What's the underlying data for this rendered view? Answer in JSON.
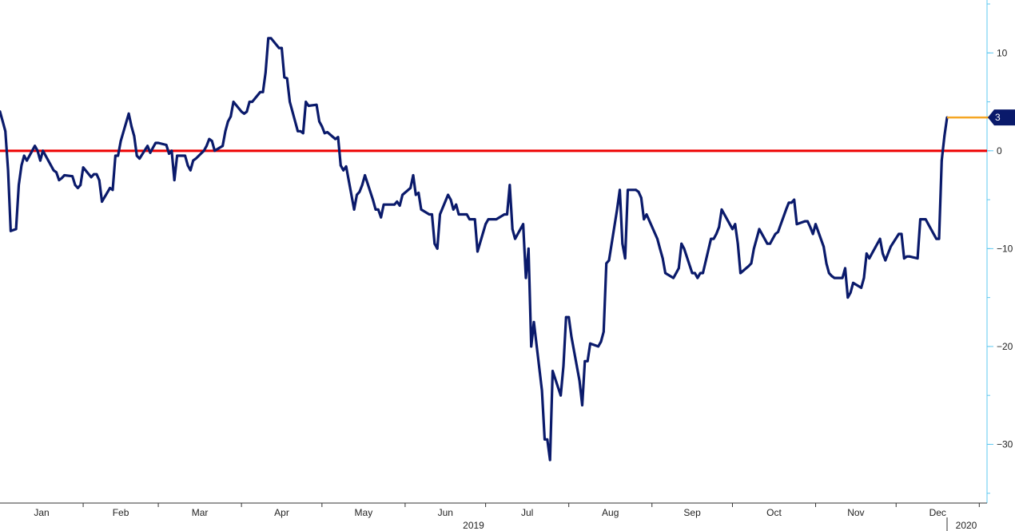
{
  "chart_data": {
    "type": "line",
    "title": "",
    "xlabel": "",
    "ylabel": "",
    "ylim": [
      -36,
      15
    ],
    "grid": false,
    "legend": "none",
    "y_axis": {
      "side": "right",
      "ticks": [
        10,
        0,
        -10,
        -20,
        -30
      ],
      "tick_labels": [
        "10",
        "0",
        "−10",
        "−20",
        "−30"
      ]
    },
    "x_axis": {
      "months": [
        "Jan",
        "Feb",
        "Mar",
        "Apr",
        "May",
        "Jun",
        "Jul",
        "Aug",
        "Sep",
        "Oct",
        "Nov",
        "Dec"
      ],
      "year_labels": [
        "2019",
        "2020"
      ]
    },
    "reference_line": {
      "value": 0,
      "color": "#ee0000"
    },
    "last_value": {
      "label": "3",
      "value": 3.4,
      "color": "#0a1a6b",
      "leader_color": "#f5a623"
    },
    "series": [
      {
        "color": "#0a1a6b",
        "points": [
          [
            "2019-01-01",
            4.0
          ],
          [
            "2019-01-02",
            3.0
          ],
          [
            "2019-01-03",
            2.0
          ],
          [
            "2019-01-04",
            -2.0
          ],
          [
            "2019-01-05",
            -8.2
          ],
          [
            "2019-01-07",
            -8.0
          ],
          [
            "2019-01-08",
            -3.5
          ],
          [
            "2019-01-09",
            -1.5
          ],
          [
            "2019-01-10",
            -0.5
          ],
          [
            "2019-01-11",
            -1.0
          ],
          [
            "2019-01-14",
            0.5
          ],
          [
            "2019-01-15",
            0.0
          ],
          [
            "2019-01-16",
            -1.0
          ],
          [
            "2019-01-17",
            0.0
          ],
          [
            "2019-01-18",
            -0.5
          ],
          [
            "2019-01-21",
            -2.0
          ],
          [
            "2019-01-22",
            -2.2
          ],
          [
            "2019-01-23",
            -3.0
          ],
          [
            "2019-01-24",
            -2.8
          ],
          [
            "2019-01-25",
            -2.5
          ],
          [
            "2019-01-28",
            -2.6
          ],
          [
            "2019-01-29",
            -3.5
          ],
          [
            "2019-01-30",
            -3.8
          ],
          [
            "2019-01-31",
            -3.5
          ],
          [
            "2019-02-01",
            -1.7
          ],
          [
            "2019-02-04",
            -2.7
          ],
          [
            "2019-02-05",
            -2.4
          ],
          [
            "2019-02-06",
            -2.4
          ],
          [
            "2019-02-07",
            -3.0
          ],
          [
            "2019-02-08",
            -5.2
          ],
          [
            "2019-02-11",
            -3.8
          ],
          [
            "2019-02-12",
            -4.0
          ],
          [
            "2019-02-13",
            -0.5
          ],
          [
            "2019-02-14",
            -0.5
          ],
          [
            "2019-02-15",
            1.0
          ],
          [
            "2019-02-18",
            3.8
          ],
          [
            "2019-02-19",
            2.5
          ],
          [
            "2019-02-20",
            1.5
          ],
          [
            "2019-02-21",
            -0.5
          ],
          [
            "2019-02-22",
            -0.8
          ],
          [
            "2019-02-25",
            0.5
          ],
          [
            "2019-02-26",
            -0.2
          ],
          [
            "2019-02-27",
            0.3
          ],
          [
            "2019-02-28",
            0.8
          ],
          [
            "2019-03-01",
            0.8
          ],
          [
            "2019-03-04",
            0.6
          ],
          [
            "2019-03-05",
            -0.3
          ],
          [
            "2019-03-06",
            0.0
          ],
          [
            "2019-03-07",
            -3.0
          ],
          [
            "2019-03-08",
            -0.5
          ],
          [
            "2019-03-11",
            -0.5
          ],
          [
            "2019-03-12",
            -1.5
          ],
          [
            "2019-03-13",
            -2.0
          ],
          [
            "2019-03-14",
            -1.0
          ],
          [
            "2019-03-15",
            -0.8
          ],
          [
            "2019-03-18",
            0.0
          ],
          [
            "2019-03-19",
            0.5
          ],
          [
            "2019-03-20",
            1.2
          ],
          [
            "2019-03-21",
            1.0
          ],
          [
            "2019-03-22",
            0.0
          ],
          [
            "2019-03-25",
            0.5
          ],
          [
            "2019-03-26",
            2.0
          ],
          [
            "2019-03-27",
            3.0
          ],
          [
            "2019-03-28",
            3.5
          ],
          [
            "2019-03-29",
            5.0
          ],
          [
            "2019-04-01",
            4.0
          ],
          [
            "2019-04-02",
            3.8
          ],
          [
            "2019-04-03",
            4.0
          ],
          [
            "2019-04-04",
            5.0
          ],
          [
            "2019-04-05",
            5.0
          ],
          [
            "2019-04-08",
            6.0
          ],
          [
            "2019-04-09",
            6.0
          ],
          [
            "2019-04-10",
            8.0
          ],
          [
            "2019-04-11",
            11.5
          ],
          [
            "2019-04-12",
            11.5
          ],
          [
            "2019-04-15",
            10.5
          ],
          [
            "2019-04-16",
            10.5
          ],
          [
            "2019-04-17",
            7.5
          ],
          [
            "2019-04-18",
            7.4
          ],
          [
            "2019-04-19",
            5.0
          ],
          [
            "2019-04-22",
            2.0
          ],
          [
            "2019-04-23",
            2.0
          ],
          [
            "2019-04-24",
            1.8
          ],
          [
            "2019-04-25",
            5.0
          ],
          [
            "2019-04-26",
            4.6
          ],
          [
            "2019-04-29",
            4.7
          ],
          [
            "2019-04-30",
            3.0
          ],
          [
            "2019-05-01",
            2.5
          ],
          [
            "2019-05-02",
            1.8
          ],
          [
            "2019-05-03",
            1.9
          ],
          [
            "2019-05-06",
            1.2
          ],
          [
            "2019-05-07",
            1.4
          ],
          [
            "2019-05-08",
            -1.5
          ],
          [
            "2019-05-09",
            -2.0
          ],
          [
            "2019-05-10",
            -1.6
          ],
          [
            "2019-05-13",
            -6.0
          ],
          [
            "2019-05-14",
            -4.5
          ],
          [
            "2019-05-15",
            -4.2
          ],
          [
            "2019-05-16",
            -3.5
          ],
          [
            "2019-05-17",
            -2.5
          ],
          [
            "2019-05-20",
            -5.0
          ],
          [
            "2019-05-21",
            -6.0
          ],
          [
            "2019-05-22",
            -6.0
          ],
          [
            "2019-05-23",
            -6.8
          ],
          [
            "2019-05-24",
            -5.5
          ],
          [
            "2019-05-28",
            -5.5
          ],
          [
            "2019-05-29",
            -5.2
          ],
          [
            "2019-05-30",
            -5.6
          ],
          [
            "2019-05-31",
            -4.5
          ],
          [
            "2019-06-03",
            -3.8
          ],
          [
            "2019-06-04",
            -2.5
          ],
          [
            "2019-06-05",
            -4.5
          ],
          [
            "2019-06-06",
            -4.3
          ],
          [
            "2019-06-07",
            -6.0
          ],
          [
            "2019-06-10",
            -6.5
          ],
          [
            "2019-06-11",
            -6.5
          ],
          [
            "2019-06-12",
            -9.5
          ],
          [
            "2019-06-13",
            -10.0
          ],
          [
            "2019-06-14",
            -6.5
          ],
          [
            "2019-06-17",
            -4.5
          ],
          [
            "2019-06-18",
            -5.0
          ],
          [
            "2019-06-19",
            -6.0
          ],
          [
            "2019-06-20",
            -5.5
          ],
          [
            "2019-06-21",
            -6.5
          ],
          [
            "2019-06-24",
            -6.5
          ],
          [
            "2019-06-25",
            -7.0
          ],
          [
            "2019-06-26",
            -7.0
          ],
          [
            "2019-06-27",
            -7.0
          ],
          [
            "2019-06-28",
            -10.3
          ],
          [
            "2019-07-01",
            -7.5
          ],
          [
            "2019-07-02",
            -7.0
          ],
          [
            "2019-07-03",
            -7.0
          ],
          [
            "2019-07-05",
            -7.0
          ],
          [
            "2019-07-08",
            -6.5
          ],
          [
            "2019-07-09",
            -6.5
          ],
          [
            "2019-07-10",
            -3.5
          ],
          [
            "2019-07-11",
            -8.0
          ],
          [
            "2019-07-12",
            -9.0
          ],
          [
            "2019-07-15",
            -7.5
          ],
          [
            "2019-07-16",
            -13.0
          ],
          [
            "2019-07-17",
            -10.0
          ],
          [
            "2019-07-18",
            -20.0
          ],
          [
            "2019-07-19",
            -17.5
          ],
          [
            "2019-07-22",
            -24.5
          ],
          [
            "2019-07-23",
            -29.5
          ],
          [
            "2019-07-24",
            -29.5
          ],
          [
            "2019-07-25",
            -31.6
          ],
          [
            "2019-07-26",
            -22.5
          ],
          [
            "2019-07-29",
            -25.0
          ],
          [
            "2019-07-30",
            -22.0
          ],
          [
            "2019-07-31",
            -17.0
          ],
          [
            "2019-08-01",
            -17.0
          ],
          [
            "2019-08-02",
            -19.0
          ],
          [
            "2019-08-05",
            -23.5
          ],
          [
            "2019-08-06",
            -26.0
          ],
          [
            "2019-08-07",
            -21.5
          ],
          [
            "2019-08-08",
            -21.5
          ],
          [
            "2019-08-09",
            -19.7
          ],
          [
            "2019-08-12",
            -20.0
          ],
          [
            "2019-08-13",
            -19.5
          ],
          [
            "2019-08-14",
            -18.5
          ],
          [
            "2019-08-15",
            -11.5
          ],
          [
            "2019-08-16",
            -11.2
          ],
          [
            "2019-08-19",
            -6.0
          ],
          [
            "2019-08-20",
            -4.0
          ],
          [
            "2019-08-21",
            -9.5
          ],
          [
            "2019-08-22",
            -11.0
          ],
          [
            "2019-08-23",
            -4.0
          ],
          [
            "2019-08-26",
            -4.0
          ],
          [
            "2019-08-27",
            -4.2
          ],
          [
            "2019-08-28",
            -4.8
          ],
          [
            "2019-08-29",
            -7.0
          ],
          [
            "2019-08-30",
            -6.5
          ],
          [
            "2019-09-03",
            -9.0
          ],
          [
            "2019-09-04",
            -10.0
          ],
          [
            "2019-09-05",
            -11.0
          ],
          [
            "2019-09-06",
            -12.5
          ],
          [
            "2019-09-09",
            -13.0
          ],
          [
            "2019-09-10",
            -12.5
          ],
          [
            "2019-09-11",
            -12.0
          ],
          [
            "2019-09-12",
            -9.5
          ],
          [
            "2019-09-13",
            -10.0
          ],
          [
            "2019-09-16",
            -12.5
          ],
          [
            "2019-09-17",
            -12.5
          ],
          [
            "2019-09-18",
            -13.0
          ],
          [
            "2019-09-19",
            -12.5
          ],
          [
            "2019-09-20",
            -12.5
          ],
          [
            "2019-09-23",
            -9.0
          ],
          [
            "2019-09-24",
            -9.0
          ],
          [
            "2019-09-25",
            -8.5
          ],
          [
            "2019-09-26",
            -7.8
          ],
          [
            "2019-09-27",
            -6.0
          ],
          [
            "2019-09-30",
            -7.5
          ],
          [
            "2019-10-01",
            -8.0
          ],
          [
            "2019-10-02",
            -7.5
          ],
          [
            "2019-10-03",
            -9.5
          ],
          [
            "2019-10-04",
            -12.5
          ],
          [
            "2019-10-07",
            -11.8
          ],
          [
            "2019-10-08",
            -11.5
          ],
          [
            "2019-10-09",
            -10.0
          ],
          [
            "2019-10-10",
            -9.0
          ],
          [
            "2019-10-11",
            -8.0
          ],
          [
            "2019-10-14",
            -9.5
          ],
          [
            "2019-10-15",
            -9.5
          ],
          [
            "2019-10-16",
            -9.0
          ],
          [
            "2019-10-17",
            -8.5
          ],
          [
            "2019-10-18",
            -8.3
          ],
          [
            "2019-10-21",
            -6.0
          ],
          [
            "2019-10-22",
            -5.3
          ],
          [
            "2019-10-23",
            -5.3
          ],
          [
            "2019-10-24",
            -5.0
          ],
          [
            "2019-10-25",
            -7.5
          ],
          [
            "2019-10-28",
            -7.2
          ],
          [
            "2019-10-29",
            -7.2
          ],
          [
            "2019-10-30",
            -7.8
          ],
          [
            "2019-10-31",
            -8.5
          ],
          [
            "2019-11-01",
            -7.5
          ],
          [
            "2019-11-04",
            -9.8
          ],
          [
            "2019-11-05",
            -11.5
          ],
          [
            "2019-11-06",
            -12.5
          ],
          [
            "2019-11-07",
            -12.8
          ],
          [
            "2019-11-08",
            -13.0
          ],
          [
            "2019-11-11",
            -13.0
          ],
          [
            "2019-11-12",
            -12.0
          ],
          [
            "2019-11-13",
            -15.0
          ],
          [
            "2019-11-14",
            -14.5
          ],
          [
            "2019-11-15",
            -13.5
          ],
          [
            "2019-11-18",
            -14.0
          ],
          [
            "2019-11-19",
            -13.0
          ],
          [
            "2019-11-20",
            -10.5
          ],
          [
            "2019-11-21",
            -11.0
          ],
          [
            "2019-11-22",
            -10.5
          ],
          [
            "2019-11-25",
            -9.0
          ],
          [
            "2019-11-26",
            -10.5
          ],
          [
            "2019-11-27",
            -11.2
          ],
          [
            "2019-11-29",
            -9.8
          ],
          [
            "2019-12-02",
            -8.5
          ],
          [
            "2019-12-03",
            -8.5
          ],
          [
            "2019-12-04",
            -11.0
          ],
          [
            "2019-12-05",
            -10.8
          ],
          [
            "2019-12-06",
            -10.8
          ],
          [
            "2019-12-09",
            -11.0
          ],
          [
            "2019-12-10",
            -7.0
          ],
          [
            "2019-12-11",
            -7.0
          ],
          [
            "2019-12-12",
            -7.0
          ],
          [
            "2019-12-13",
            -7.5
          ],
          [
            "2019-12-16",
            -9.0
          ],
          [
            "2019-12-17",
            -9.0
          ],
          [
            "2019-12-18",
            -1.0
          ],
          [
            "2019-12-19",
            1.5
          ],
          [
            "2019-12-20",
            3.4
          ]
        ]
      }
    ]
  }
}
